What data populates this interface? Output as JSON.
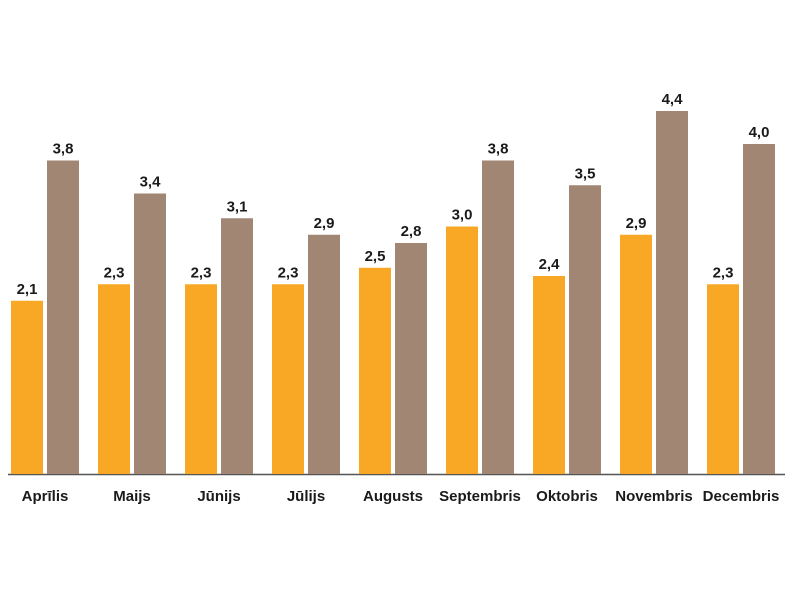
{
  "chart_data": {
    "type": "bar",
    "title": "",
    "xlabel": "",
    "ylabel": "",
    "categories": [
      "Aprīlis",
      "Maijs",
      "Jūnijs",
      "Jūlijs",
      "Augusts",
      "Septembris",
      "Oktobris",
      "Novembris",
      "Decembris"
    ],
    "series": [
      {
        "values": [
          2.1,
          2.3,
          2.3,
          2.3,
          2.5,
          3.0,
          2.4,
          2.9,
          2.3
        ],
        "labels": [
          "2,1",
          "2,3",
          "2,3",
          "2,3",
          "2,5",
          "3,0",
          "2,4",
          "2,9",
          "2,3"
        ],
        "color": "#F9A826"
      },
      {
        "values": [
          3.8,
          3.4,
          3.1,
          2.9,
          2.8,
          3.8,
          3.5,
          4.4,
          4.0
        ],
        "labels": [
          "3,8",
          "3,4",
          "3,1",
          "2,9",
          "2,8",
          "3,8",
          "3,5",
          "4,4",
          "4,0"
        ],
        "color": "#A08673"
      }
    ],
    "ylim": [
      0,
      4.4
    ],
    "grid": false,
    "legend": "none",
    "axis_color": "#555555"
  }
}
